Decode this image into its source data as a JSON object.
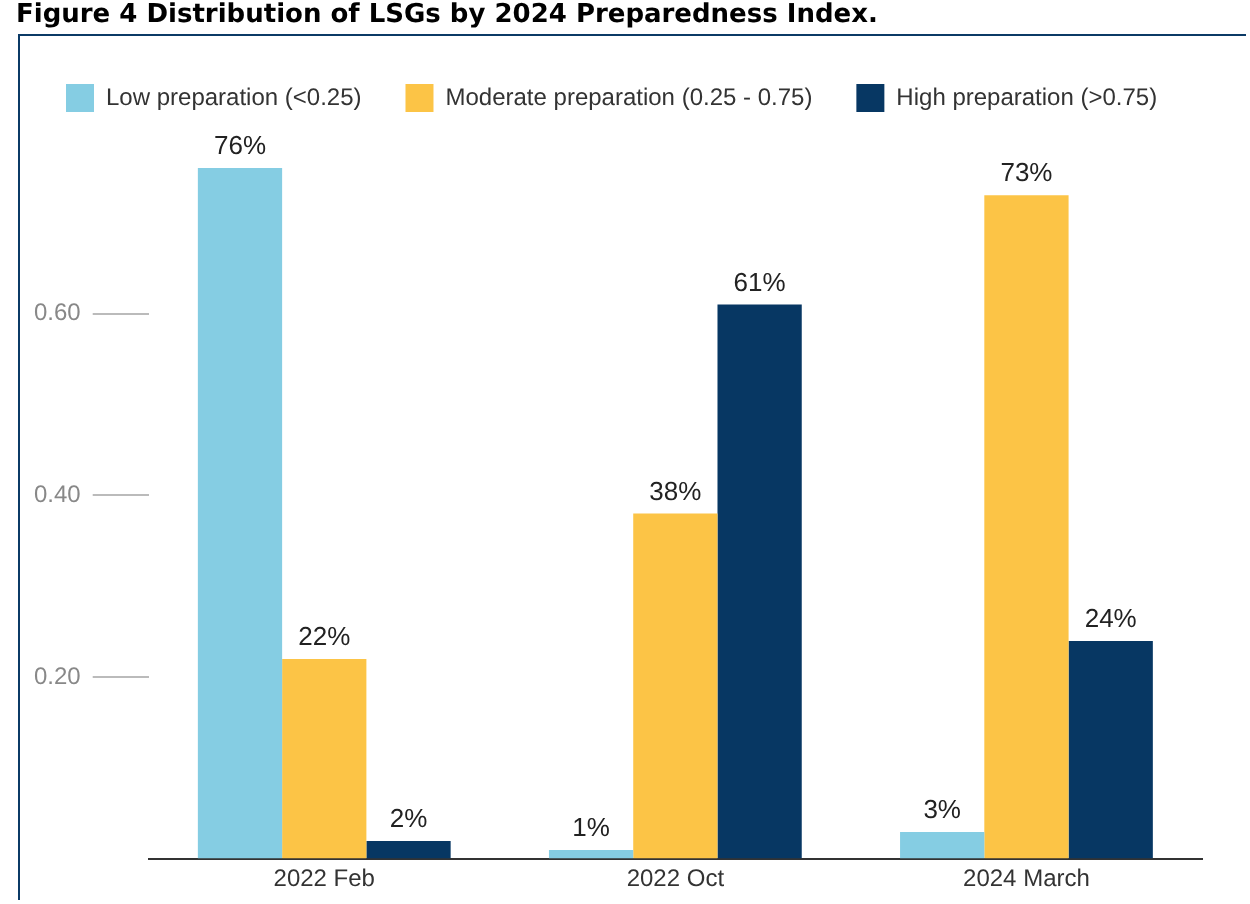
{
  "chart_data": {
    "type": "bar",
    "title": "Figure 4 Distribution of LSGs by 2024 Preparedness Index.",
    "categories": [
      "2022 Feb",
      "2022 Oct",
      "2024 March"
    ],
    "series": [
      {
        "name": "Low preparation (<0.25)",
        "color": "#85cde3",
        "values": [
          0.76,
          0.01,
          0.03
        ],
        "value_labels": [
          "76%",
          "1%",
          "3%"
        ]
      },
      {
        "name": "Moderate preparation (0.25 - 0.75)",
        "color": "#fcc446",
        "values": [
          0.22,
          0.38,
          0.73
        ],
        "value_labels": [
          "22%",
          "38%",
          "73%"
        ]
      },
      {
        "name": "High preparation (>0.75)",
        "color": "#073763",
        "values": [
          0.02,
          0.61,
          0.24
        ],
        "value_labels": [
          "2%",
          "61%",
          "24%"
        ]
      }
    ],
    "ylim": [
      0,
      0.76
    ],
    "yticks": [
      {
        "value": 0,
        "label": null
      },
      {
        "value": 0.2,
        "label": "0.20"
      },
      {
        "value": 0.4,
        "label": "0.40"
      },
      {
        "value": 0.6,
        "label": "0.60"
      }
    ],
    "grid": false,
    "legend": "top left"
  }
}
